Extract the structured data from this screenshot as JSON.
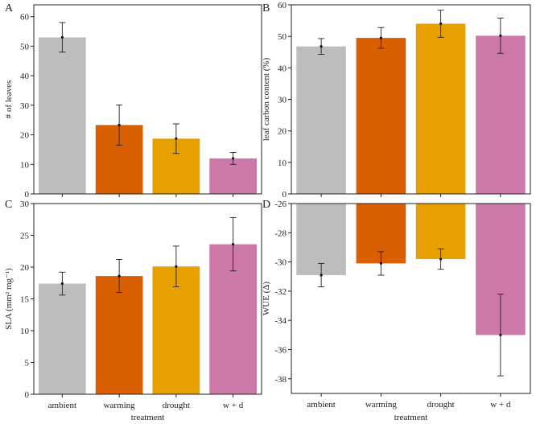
{
  "colors": {
    "ambient": "#bdbdbd",
    "warming": "#d95f02",
    "drought": "#e6a000",
    "wd": "#cc79a7"
  },
  "chart_data": [
    {
      "type": "bar",
      "panel": "A",
      "title": "",
      "xlabel": "",
      "ylabel": "# of leaves",
      "categories": [
        "ambient",
        "warming",
        "drought",
        "w + d"
      ],
      "values": [
        53,
        23.3,
        18.7,
        12
      ],
      "errors": [
        5,
        6.8,
        5,
        2
      ],
      "ylim": [
        0,
        64
      ],
      "yticks": [
        0,
        10,
        20,
        30,
        40,
        50,
        60
      ],
      "baseline": "bottom",
      "grid": false
    },
    {
      "type": "bar",
      "panel": "B",
      "title": "",
      "xlabel": "",
      "ylabel": "leaf carbon content (%)",
      "categories": [
        "ambient",
        "warming",
        "drought",
        "w + d"
      ],
      "values": [
        46.8,
        49.5,
        54,
        50.2
      ],
      "errors": [
        2.5,
        3.3,
        4.3,
        5.6
      ],
      "ylim": [
        0,
        60
      ],
      "yticks": [
        0,
        10,
        20,
        30,
        40,
        50,
        60
      ],
      "baseline": "bottom",
      "grid": false
    },
    {
      "type": "bar",
      "panel": "C",
      "title": "",
      "xlabel": "treatment",
      "ylabel": "SLA (mm² mg⁻¹)",
      "categories": [
        "ambient",
        "warming",
        "drought",
        "w + d"
      ],
      "values": [
        17.4,
        18.6,
        20.1,
        23.6
      ],
      "errors": [
        1.8,
        2.6,
        3.2,
        4.2
      ],
      "ylim": [
        0,
        30
      ],
      "yticks": [
        0,
        5,
        10,
        15,
        20,
        25,
        30
      ],
      "baseline": "bottom",
      "grid": false
    },
    {
      "type": "bar",
      "panel": "D",
      "title": "",
      "xlabel": "treatment",
      "ylabel": "WUE (Δ)",
      "categories": [
        "ambient",
        "warming",
        "drought",
        "w + d"
      ],
      "values": [
        -30.9,
        -30.1,
        -29.8,
        -35.0
      ],
      "errors": [
        0.8,
        0.8,
        0.7,
        2.8
      ],
      "ylim": [
        -39,
        -26
      ],
      "yticks": [
        -38,
        -36,
        -34,
        -32,
        -30,
        -28,
        -26
      ],
      "baseline": "top",
      "grid": false
    }
  ]
}
